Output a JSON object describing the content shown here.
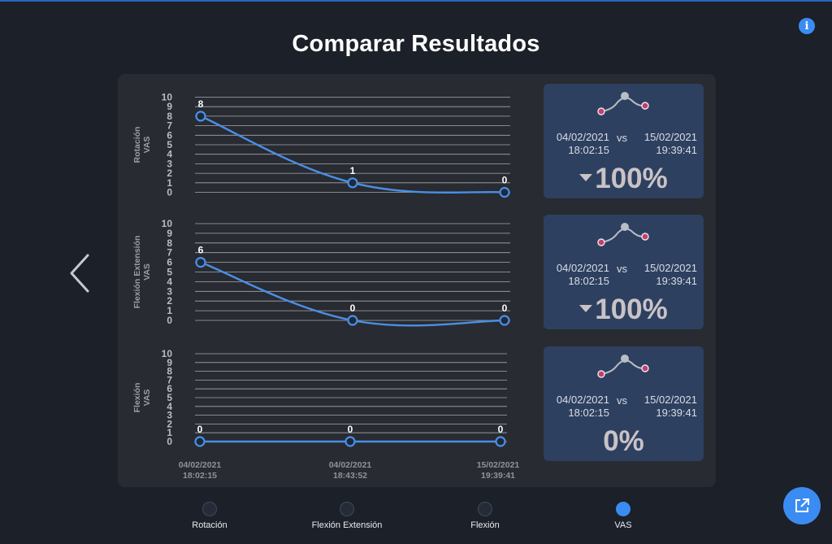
{
  "header": {
    "title": "Comparar Resultados"
  },
  "colors": {
    "accent": "#3b8cf2",
    "line": "#4a8fe6",
    "panel": "#282b31",
    "card": "#2e4060"
  },
  "icons": {
    "info": "info-icon",
    "back": "chevron-left-icon",
    "export": "external-link-icon",
    "trend": "trend-icon"
  },
  "chart_data": [
    {
      "type": "line",
      "ylabel": "Rotación VAS",
      "ylim": [
        0,
        10
      ],
      "x": [
        "04/02/2021 18:02:15",
        "04/02/2021 18:43:52",
        "15/02/2021 19:39:41"
      ],
      "values": [
        8,
        1,
        0
      ]
    },
    {
      "type": "line",
      "ylabel": "Flexión Extensión VAS",
      "ylim": [
        0,
        10
      ],
      "x": [
        "04/02/2021 18:02:15",
        "04/02/2021 18:43:52",
        "15/02/2021 19:39:41"
      ],
      "values": [
        6,
        0,
        0
      ]
    },
    {
      "type": "line",
      "ylabel": "Flexión VAS",
      "ylim": [
        0,
        10
      ],
      "x": [
        "04/02/2021 18:02:15",
        "04/02/2021 18:43:52",
        "15/02/2021 19:39:41"
      ],
      "values": [
        0,
        0,
        0
      ]
    }
  ],
  "xticks": [
    {
      "date": "04/02/2021",
      "time": "18:02:15"
    },
    {
      "date": "04/02/2021",
      "time": "18:43:52"
    },
    {
      "date": "15/02/2021",
      "time": "19:39:41"
    }
  ],
  "cards": [
    {
      "date1": "04/02/2021",
      "time1": "18:02:15",
      "vs": "vs",
      "date2": "15/02/2021",
      "time2": "19:39:41",
      "pct": "100%",
      "down": true
    },
    {
      "date1": "04/02/2021",
      "time1": "18:02:15",
      "vs": "vs",
      "date2": "15/02/2021",
      "time2": "19:39:41",
      "pct": "100%",
      "down": true
    },
    {
      "date1": "04/02/2021",
      "time1": "18:02:15",
      "vs": "vs",
      "date2": "15/02/2021",
      "time2": "19:39:41",
      "pct": "0%",
      "down": false
    }
  ],
  "nav": [
    {
      "label": "Rotación",
      "active": false
    },
    {
      "label": "Flexión Extensión",
      "active": false
    },
    {
      "label": "Flexión",
      "active": false
    },
    {
      "label": "VAS",
      "active": true
    }
  ]
}
